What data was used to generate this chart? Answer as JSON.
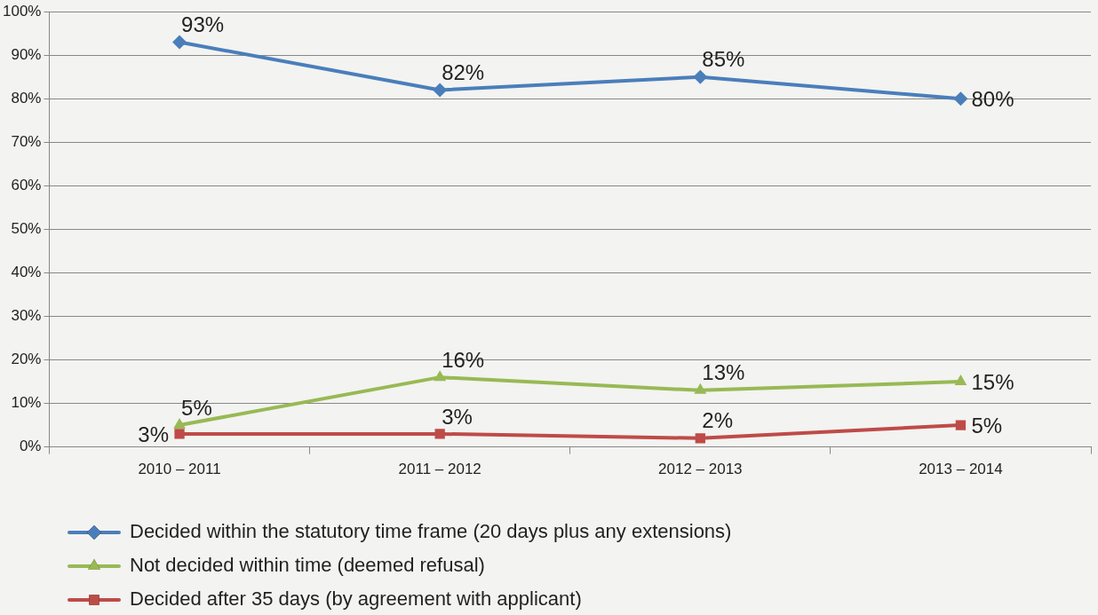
{
  "chart_data": {
    "type": "line",
    "categories": [
      "2010 – 2011",
      "2011 – 2012",
      "2012 – 2013",
      "2013 – 2014"
    ],
    "series": [
      {
        "name": "Decided within the statutory time frame (20 days plus any extensions)",
        "color": "#4a7ebb",
        "marker": "diamond",
        "values": [
          93,
          82,
          85,
          80
        ],
        "value_labels": [
          "93%",
          "82%",
          "85%",
          "80%"
        ]
      },
      {
        "name": "Not decided within time (deemed refusal)",
        "color": "#98b954",
        "marker": "triangle",
        "values": [
          5,
          16,
          13,
          15
        ],
        "value_labels": [
          "5%",
          "16%",
          "13%",
          "15%"
        ]
      },
      {
        "name": "Decided after 35 days (by agreement with applicant)",
        "color": "#be4b48",
        "marker": "square",
        "values": [
          3,
          3,
          2,
          5
        ],
        "value_labels": [
          "3%",
          "3%",
          "2%",
          "5%"
        ]
      }
    ],
    "ylim": [
      0,
      100
    ],
    "yticks": [
      {
        "value": 0,
        "label": "0%"
      },
      {
        "value": 10,
        "label": "10%"
      },
      {
        "value": 20,
        "label": "20%"
      },
      {
        "value": 30,
        "label": "30%"
      },
      {
        "value": 40,
        "label": "40%"
      },
      {
        "value": 50,
        "label": "50%"
      },
      {
        "value": 60,
        "label": "60%"
      },
      {
        "value": 70,
        "label": "70%"
      },
      {
        "value": 80,
        "label": "80%"
      },
      {
        "value": 90,
        "label": "90%"
      },
      {
        "value": 100,
        "label": "100%"
      }
    ],
    "grid": "y",
    "legend": "bottom",
    "line_style": "solid"
  }
}
